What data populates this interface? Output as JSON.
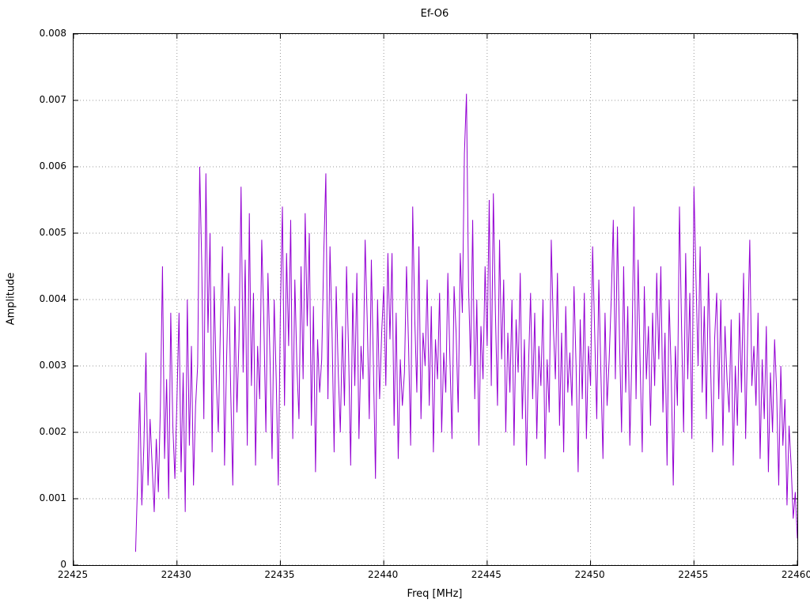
{
  "chart_data": {
    "type": "line",
    "title": "Ef-O6",
    "xlabel": "Freq [MHz]",
    "ylabel": "Amplitude",
    "xlim": [
      22425,
      22460
    ],
    "ylim": [
      0,
      0.008
    ],
    "x_ticks": [
      22425,
      22430,
      22435,
      22440,
      22445,
      22450,
      22455,
      22460
    ],
    "x_tick_labels": [
      "22425",
      "22430",
      "22435",
      "22440",
      "22445",
      "22450",
      "22455",
      "22460"
    ],
    "y_ticks": [
      0,
      0.001,
      0.002,
      0.003,
      0.004,
      0.005,
      0.006,
      0.007,
      0.008
    ],
    "y_tick_labels": [
      "0",
      "0.001",
      "0.002",
      "0.003",
      "0.004",
      "0.005",
      "0.006",
      "0.007",
      "0.008"
    ],
    "grid": true,
    "legend": "none",
    "line_color": "#9400d3",
    "x_start": 22428.0,
    "x_step": 0.1,
    "y_scale": 0.0001,
    "values_e4": [
      2,
      13,
      26,
      9,
      18,
      32,
      12,
      22,
      15,
      8,
      19,
      11,
      24,
      45,
      16,
      28,
      10,
      38,
      21,
      13,
      25,
      38,
      14,
      29,
      8,
      40,
      18,
      33,
      12,
      24,
      30,
      60,
      45,
      22,
      59,
      35,
      50,
      17,
      42,
      28,
      20,
      36,
      48,
      15,
      31,
      44,
      26,
      12,
      39,
      23,
      34,
      57,
      29,
      46,
      18,
      53,
      27,
      41,
      15,
      33,
      25,
      49,
      37,
      20,
      44,
      31,
      16,
      40,
      28,
      12,
      38,
      54,
      24,
      47,
      33,
      52,
      19,
      43,
      30,
      22,
      45,
      28,
      53,
      36,
      50,
      21,
      39,
      14,
      34,
      26,
      31,
      47,
      59,
      25,
      48,
      35,
      17,
      42,
      29,
      20,
      36,
      24,
      45,
      32,
      15,
      41,
      27,
      44,
      19,
      33,
      28,
      49,
      37,
      22,
      46,
      30,
      13,
      40,
      25,
      35,
      42,
      27,
      47,
      34,
      47,
      21,
      38,
      16,
      31,
      24,
      29,
      45,
      33,
      18,
      54,
      37,
      26,
      48,
      22,
      35,
      30,
      43,
      24,
      39,
      17,
      34,
      28,
      41,
      20,
      32,
      26,
      44,
      31,
      19,
      42,
      35,
      23,
      47,
      38,
      62,
      71,
      42,
      30,
      52,
      25,
      40,
      18,
      36,
      28,
      45,
      33,
      55,
      27,
      56,
      38,
      24,
      49,
      31,
      43,
      20,
      35,
      26,
      40,
      18,
      37,
      29,
      44,
      22,
      34,
      15,
      30,
      41,
      25,
      38,
      19,
      33,
      27,
      40,
      16,
      31,
      23,
      49,
      36,
      28,
      44,
      21,
      35,
      17,
      39,
      26,
      32,
      24,
      42,
      30,
      14,
      37,
      25,
      41,
      19,
      33,
      27,
      48,
      35,
      22,
      43,
      29,
      16,
      38,
      24,
      31,
      40,
      52,
      28,
      51,
      34,
      20,
      45,
      26,
      39,
      18,
      32,
      54,
      25,
      46,
      30,
      17,
      42,
      28,
      36,
      21,
      38,
      27,
      44,
      31,
      45,
      23,
      35,
      15,
      40,
      29,
      12,
      33,
      24,
      54,
      36,
      20,
      47,
      28,
      41,
      19,
      57,
      43,
      30,
      48,
      26,
      39,
      22,
      44,
      31,
      17,
      34,
      41,
      25,
      40,
      18,
      36,
      28,
      23,
      37,
      15,
      30,
      21,
      38,
      26,
      44,
      19,
      35,
      49,
      27,
      33,
      24,
      38,
      16,
      31,
      22,
      36,
      14,
      29,
      20,
      34,
      26,
      12,
      30,
      18,
      25,
      9,
      21,
      15,
      7,
      11,
      4
    ]
  }
}
